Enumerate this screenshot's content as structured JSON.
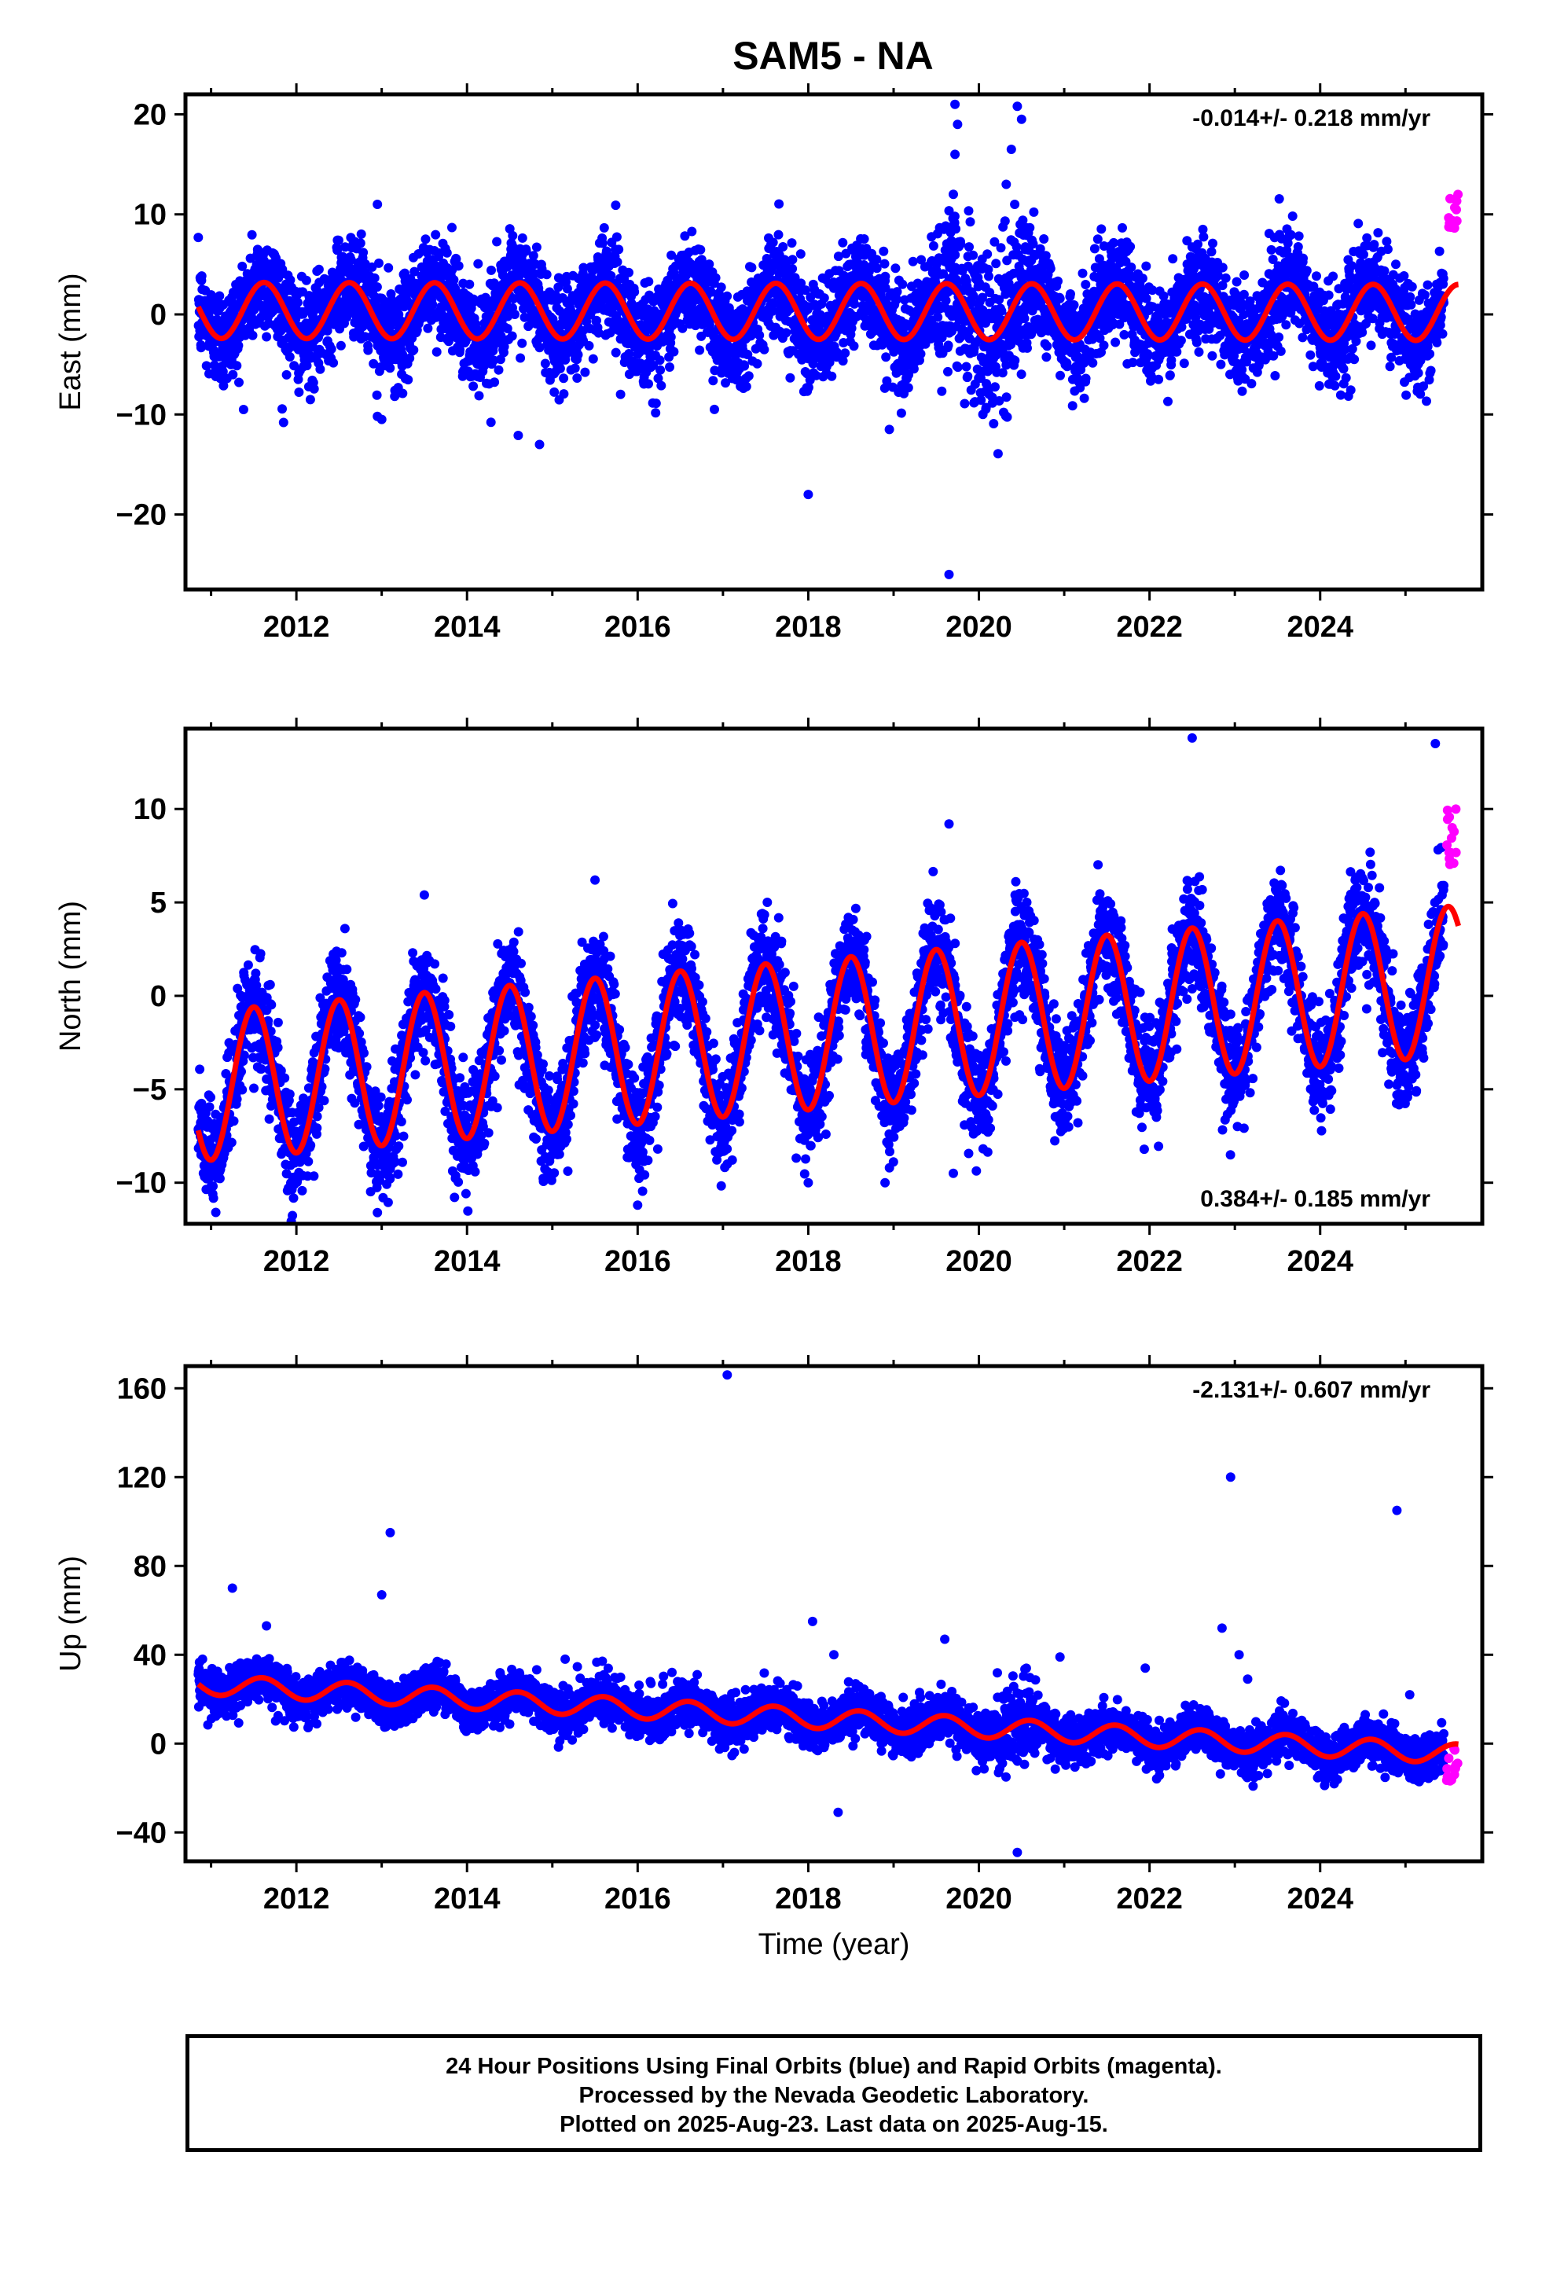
{
  "title": "SAM5 - NA",
  "footer": {
    "line1": "24 Hour Positions Using Final Orbits (blue) and Rapid Orbits (magenta).",
    "line2": "Processed by the Nevada Geodetic Laboratory.",
    "line3": "Plotted on 2025-Aug-23. Last data on 2025-Aug-15."
  },
  "colors": {
    "final": "#0000ff",
    "rapid": "#ff00ff",
    "fit": "#ff0000",
    "axes": "#000000"
  },
  "chart_data": [
    {
      "type": "scatter",
      "ylabel": "East (mm)",
      "xlabel": "",
      "xlim": [
        2010.7,
        2025.9
      ],
      "ylim": [
        -27.5,
        22
      ],
      "xticks": [
        2012,
        2014,
        2016,
        2018,
        2020,
        2022,
        2024
      ],
      "xtick_labels": [
        "2012",
        "2014",
        "2016",
        "2018",
        "2020",
        "2022",
        "2024"
      ],
      "yticks": [
        -20,
        -10,
        0,
        10,
        20
      ],
      "ytick_labels": [
        "−20",
        "−10",
        "0",
        "10",
        "20"
      ],
      "rate_text": "-0.014+/- 0.218 mm/yr",
      "rate_position": "top-right",
      "data_span": [
        2010.85,
        2025.45
      ],
      "model": {
        "rate_mm_per_yr": -0.014,
        "offset_mm": 0.3,
        "annual_amplitude_mm": 2.8,
        "annual_peak_fraction": 0.62,
        "noise_sd_mm": 2.5
      },
      "rapid_points": {
        "x_range": [
          2025.48,
          2025.62
        ],
        "y_range": [
          8.5,
          12.5
        ]
      },
      "outliers": [
        [
          2012.95,
          11.0
        ],
        [
          2012.95,
          -10.2
        ],
        [
          2013.0,
          -10.5
        ],
        [
          2011.85,
          -10.8
        ],
        [
          2014.85,
          -13.0
        ],
        [
          2014.6,
          -12.1
        ],
        [
          2018.0,
          -18.0
        ],
        [
          2018.95,
          -11.5
        ],
        [
          2019.65,
          -26.0
        ],
        [
          2019.72,
          21.0
        ],
        [
          2019.75,
          19.0
        ],
        [
          2019.72,
          16.0
        ],
        [
          2019.7,
          12.0
        ],
        [
          2020.45,
          20.8
        ],
        [
          2020.5,
          19.5
        ],
        [
          2020.38,
          16.5
        ],
        [
          2020.32,
          13.0
        ],
        [
          2020.42,
          11.0
        ],
        [
          2016.9,
          -9.5
        ],
        [
          2015.8,
          -8.0
        ],
        [
          2021.1,
          -6.5
        ]
      ]
    },
    {
      "type": "scatter",
      "ylabel": "North (mm)",
      "xlabel": "",
      "xlim": [
        2010.7,
        2025.9
      ],
      "ylim": [
        -12.2,
        14.3
      ],
      "xticks": [
        2012,
        2014,
        2016,
        2018,
        2020,
        2022,
        2024
      ],
      "xtick_labels": [
        "2012",
        "2014",
        "2016",
        "2018",
        "2020",
        "2022",
        "2024"
      ],
      "yticks": [
        -10,
        -5,
        0,
        5,
        10
      ],
      "ytick_labels": [
        "−10",
        "−5",
        "0",
        "5",
        "10"
      ],
      "rate_text": "0.384+/- 0.185 mm/yr",
      "rate_position": "bottom-right",
      "data_span": [
        2010.85,
        2025.45
      ],
      "model": {
        "rate_mm_per_yr": 0.384,
        "offset_mm": -2.1,
        "annual_amplitude_mm": 4.0,
        "annual_peak_fraction": 0.5,
        "noise_sd_mm": 1.4
      },
      "rapid_points": {
        "x_range": [
          2025.48,
          2025.62
        ],
        "y_range": [
          7.0,
          10.5
        ]
      },
      "outliers": [
        [
          2012.95,
          -11.6
        ],
        [
          2016.0,
          -11.2
        ],
        [
          2018.0,
          -10.0
        ],
        [
          2018.9,
          -10.0
        ],
        [
          2019.7,
          -9.5
        ],
        [
          2019.65,
          9.2
        ],
        [
          2022.5,
          13.8
        ],
        [
          2025.35,
          13.5
        ],
        [
          2024.9,
          -5.3
        ],
        [
          2013.5,
          5.4
        ],
        [
          2015.5,
          6.2
        ]
      ]
    },
    {
      "type": "scatter",
      "ylabel": "Up (mm)",
      "xlabel": "Time (year)",
      "xlim": [
        2010.7,
        2025.9
      ],
      "ylim": [
        -53,
        170
      ],
      "xticks": [
        2012,
        2014,
        2016,
        2018,
        2020,
        2022,
        2024
      ],
      "xtick_labels": [
        "2012",
        "2014",
        "2016",
        "2018",
        "2020",
        "2022",
        "2024"
      ],
      "yticks": [
        -40,
        0,
        40,
        80,
        120,
        160
      ],
      "ytick_labels": [
        "−40",
        "0",
        "40",
        "80",
        "120",
        "160"
      ],
      "rate_text": "-2.131+/- 0.607 mm/yr",
      "rate_position": "top-right",
      "data_span": [
        2010.85,
        2025.45
      ],
      "model": {
        "rate_mm_per_yr": -2.131,
        "offset_mm": 11.5,
        "annual_amplitude_mm": 4.5,
        "annual_peak_fraction": 0.6,
        "noise_sd_mm": 5.0
      },
      "rapid_points": {
        "x_range": [
          2025.48,
          2025.62
        ],
        "y_range": [
          -20,
          -2
        ]
      },
      "outliers": [
        [
          2010.9,
          38
        ],
        [
          2011.25,
          70
        ],
        [
          2011.65,
          53
        ],
        [
          2013.0,
          67
        ],
        [
          2013.1,
          95
        ],
        [
          2017.05,
          166
        ],
        [
          2018.05,
          55
        ],
        [
          2018.3,
          40
        ],
        [
          2018.35,
          -31
        ],
        [
          2019.6,
          47
        ],
        [
          2020.45,
          -49
        ],
        [
          2020.95,
          39
        ],
        [
          2021.95,
          34
        ],
        [
          2022.85,
          52
        ],
        [
          2022.95,
          120
        ],
        [
          2023.05,
          40
        ],
        [
          2023.15,
          29
        ],
        [
          2024.9,
          105
        ],
        [
          2025.05,
          22
        ],
        [
          2015.15,
          38
        ]
      ]
    }
  ]
}
